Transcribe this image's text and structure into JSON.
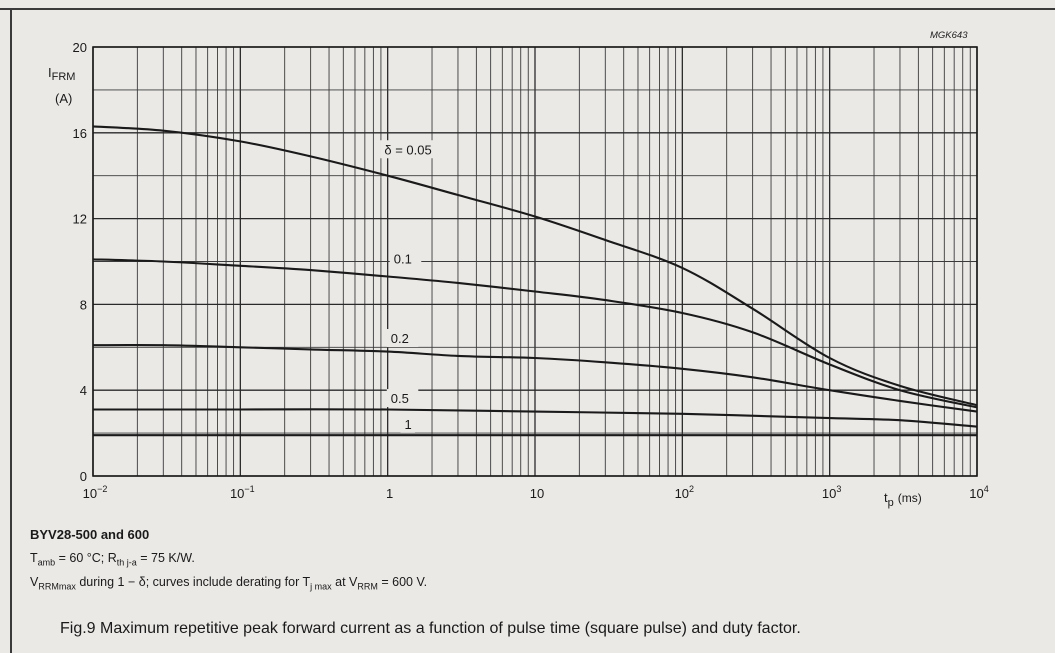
{
  "code_label": "MGK643",
  "notes": {
    "model": "BYV28-500 and 600",
    "line1_parts": [
      "T",
      "amb",
      " = 60 °C; R",
      "th j-a",
      " = 75 K/W."
    ],
    "line2_parts": [
      "V",
      "RRMmax",
      " during 1 − δ; curves include derating for T",
      "j max",
      " at V",
      "RRM",
      " = 600 V."
    ]
  },
  "caption": "Fig.9  Maximum repetitive peak forward current as a function of pulse time (square pulse) and duty factor.",
  "chart_data": {
    "type": "line",
    "title": "",
    "ylabel": "I",
    "ylabel_sub": "FRM",
    "yunit": "(A)",
    "xlabel": "t",
    "xlabel_sub": "p",
    "xunit": "(ms)",
    "x_scale": "log",
    "xlim": [
      0.01,
      10000
    ],
    "ylim": [
      0,
      20
    ],
    "yticks": [
      0,
      4,
      8,
      12,
      16,
      20
    ],
    "xticks": [
      {
        "value": 0.01,
        "base": "10",
        "exp": "−2"
      },
      {
        "value": 0.1,
        "base": "10",
        "exp": "−1"
      },
      {
        "value": 1,
        "base": "1",
        "exp": ""
      },
      {
        "value": 10,
        "base": "10",
        "exp": ""
      },
      {
        "value": 100,
        "base": "10",
        "exp": "2"
      },
      {
        "value": 1000,
        "base": "10",
        "exp": "3"
      },
      {
        "value": 10000,
        "base": "10",
        "exp": "4"
      }
    ],
    "grid": true,
    "series": [
      {
        "name": "δ = 0.05",
        "x": [
          0.01,
          0.03,
          0.1,
          0.3,
          1,
          3,
          10,
          30,
          100,
          300,
          1000,
          3000,
          10000
        ],
        "y": [
          16.3,
          16.1,
          15.6,
          14.9,
          14.0,
          13.1,
          12.1,
          11.0,
          9.7,
          7.8,
          5.5,
          4.2,
          3.3
        ]
      },
      {
        "name": "0.1",
        "x": [
          0.01,
          0.03,
          0.1,
          0.3,
          1,
          3,
          10,
          30,
          100,
          300,
          1000,
          3000,
          10000
        ],
        "y": [
          10.1,
          10.0,
          9.8,
          9.6,
          9.3,
          9.0,
          8.6,
          8.2,
          7.6,
          6.7,
          5.2,
          4.0,
          3.2
        ]
      },
      {
        "name": "0.2",
        "x": [
          0.01,
          0.03,
          0.1,
          0.3,
          1,
          3,
          10,
          30,
          100,
          300,
          1000,
          3000,
          10000
        ],
        "y": [
          6.1,
          6.1,
          6.0,
          5.9,
          5.8,
          5.6,
          5.5,
          5.3,
          5.0,
          4.6,
          4.0,
          3.5,
          3.0
        ]
      },
      {
        "name": "0.5",
        "x": [
          0.01,
          0.1,
          1,
          10,
          100,
          1000,
          3000,
          10000
        ],
        "y": [
          3.1,
          3.1,
          3.1,
          3.0,
          2.9,
          2.7,
          2.6,
          2.3
        ]
      },
      {
        "name": "1",
        "x": [
          0.01,
          1,
          100,
          1000,
          10000
        ],
        "y": [
          1.9,
          1.9,
          1.9,
          1.9,
          1.9
        ]
      }
    ]
  }
}
